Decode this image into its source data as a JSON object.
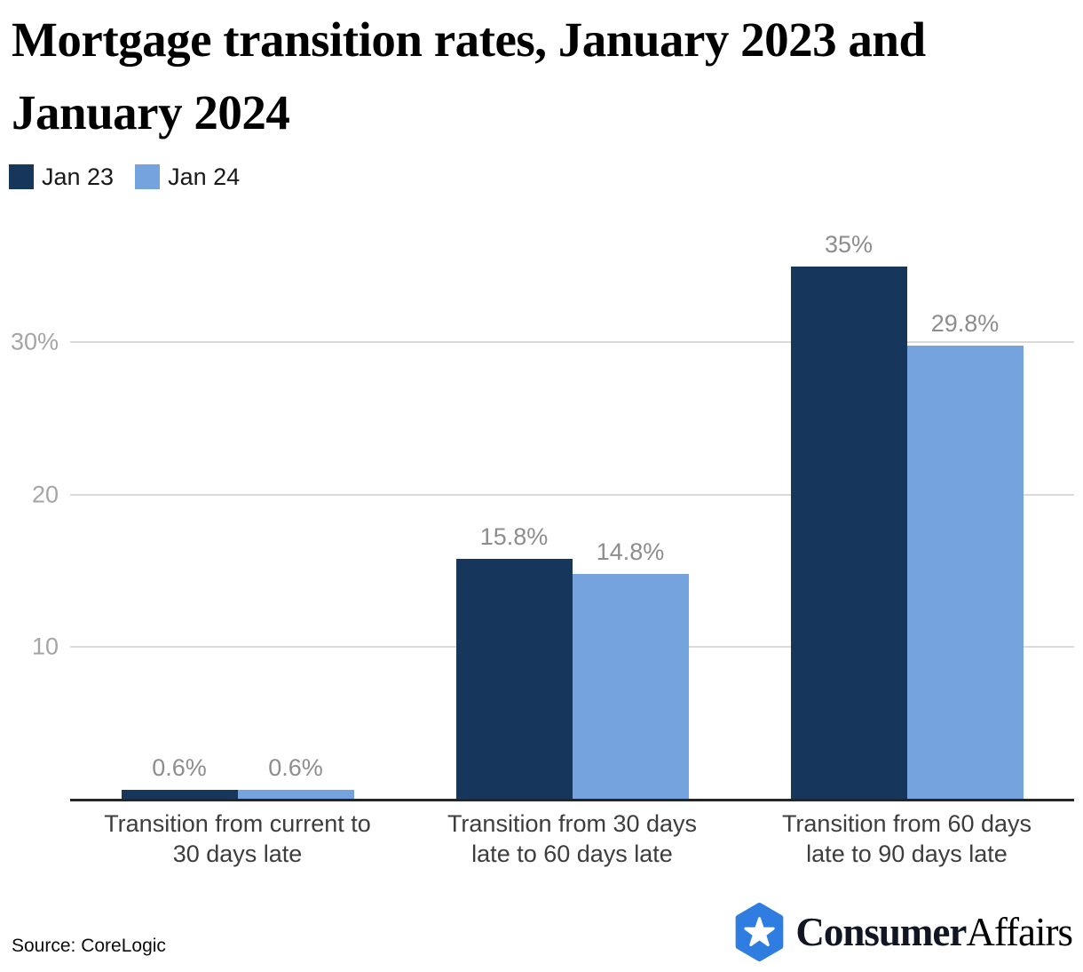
{
  "header": {
    "title": "Mortgage transition rates, January 2023 and\nJanuary 2024"
  },
  "legend": [
    {
      "label": "Jan 23",
      "color": "#17365C"
    },
    {
      "label": "Jan 24",
      "color": "#74A3DE"
    }
  ],
  "chart_data": {
    "type": "bar",
    "title": "Mortgage transition rates, January 2023 and January 2024",
    "categories": [
      "Transition from current to\n30 days late",
      "Transition from 30 days\nlate to 60 days late",
      "Transition from 60 days\nlate to 90 days late"
    ],
    "series": [
      {
        "name": "Jan 23",
        "color": "#17365C",
        "values": [
          0.6,
          15.8,
          35
        ]
      },
      {
        "name": "Jan 24",
        "color": "#74A3DE",
        "values": [
          0.6,
          14.8,
          29.8
        ]
      }
    ],
    "value_labels": [
      [
        "0.6%",
        "15.8%",
        "35%"
      ],
      [
        "0.6%",
        "14.8%",
        "29.8%"
      ]
    ],
    "yticks": [
      {
        "value": 10,
        "label": "10"
      },
      {
        "value": 20,
        "label": "20"
      },
      {
        "value": 30,
        "label": "30%"
      }
    ],
    "ylim": [
      0,
      38.5
    ],
    "xlabel": "",
    "ylabel": "",
    "grid": "horizontal",
    "legend_position": "top-left"
  },
  "footer": {
    "source": "Source: CoreLogic",
    "brand": {
      "bold": "Consumer",
      "light": "Affairs",
      "hexagon_color": "#2F7DE0",
      "star_color": "#ffffff"
    }
  }
}
